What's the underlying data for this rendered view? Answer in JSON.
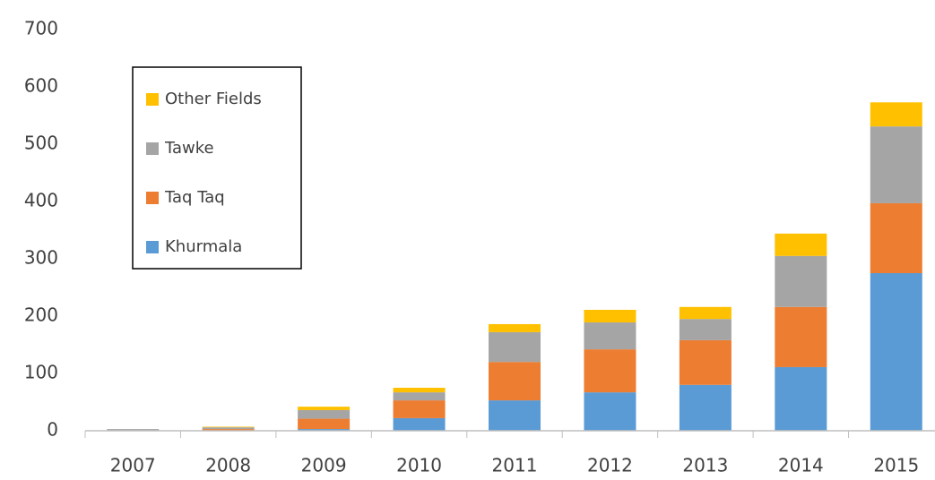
{
  "chart_data": {
    "type": "bar",
    "stacked": true,
    "categories": [
      "2007",
      "2008",
      "2009",
      "2010",
      "2011",
      "2012",
      "2013",
      "2014",
      "2015"
    ],
    "series": [
      {
        "name": "Khurmala",
        "color": "#5b9bd5",
        "values": [
          0,
          0,
          3,
          22,
          53,
          67,
          80,
          111,
          275
        ]
      },
      {
        "name": "Taq Taq",
        "color": "#ed7d31",
        "values": [
          0,
          3,
          18,
          31,
          67,
          75,
          78,
          105,
          122
        ]
      },
      {
        "name": "Tawke",
        "color": "#a5a5a5",
        "values": [
          3,
          3,
          15,
          14,
          52,
          47,
          37,
          89,
          134
        ]
      },
      {
        "name": "Other Fields",
        "color": "#ffc000",
        "values": [
          0,
          1,
          6,
          8,
          14,
          22,
          21,
          39,
          42
        ]
      }
    ],
    "ylim": [
      0,
      700
    ],
    "yticks": [
      0,
      100,
      200,
      300,
      400,
      500,
      600,
      700
    ],
    "grid": false,
    "legend": "upper left"
  }
}
